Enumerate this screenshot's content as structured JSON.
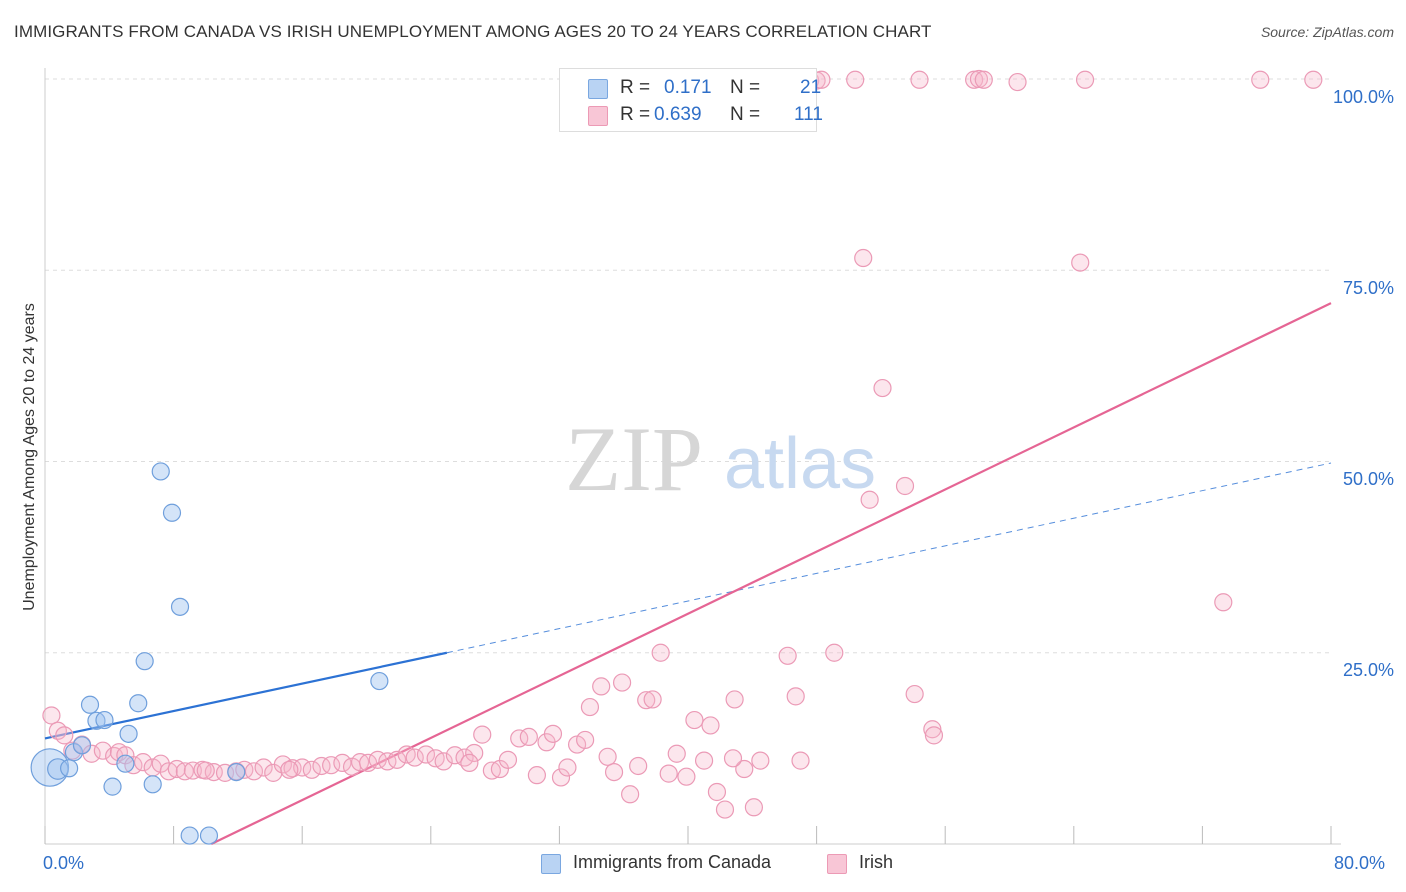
{
  "header": {
    "title": "IMMIGRANTS FROM CANADA VS IRISH UNEMPLOYMENT AMONG AGES 20 TO 24 YEARS CORRELATION CHART",
    "source": "Source: ZipAtlas.com"
  },
  "watermark": {
    "zip": "ZIP",
    "atlas": "atlas"
  },
  "legend": {
    "r_label": "R =",
    "n_label": "N =",
    "series": [
      {
        "name": "Immigrants from Canada",
        "r": "0.171",
        "n": "21",
        "fill": "#b9d3f3",
        "stroke": "#7aa7e0"
      },
      {
        "name": "Irish",
        "r": "0.639",
        "n": "111",
        "fill": "#f8c6d6",
        "stroke": "#ec9ab5"
      }
    ]
  },
  "colors": {
    "blue_point_fill": "rgba(160,196,240,0.45)",
    "blue_point_stroke": "#6f9fdc",
    "pink_point_fill": "rgba(246,182,204,0.35)",
    "pink_point_stroke": "#eb9ab6",
    "blue_line": "#2c72d4",
    "pink_line": "#e56594",
    "grid": "#dddddd",
    "tick_label": "#2f6fc8"
  },
  "chart_data": {
    "type": "scatter",
    "title": "IMMIGRANTS FROM CANADA VS IRISH UNEMPLOYMENT AMONG AGES 20 TO 24 YEARS CORRELATION CHART",
    "xlabel": "",
    "ylabel": "Unemployment Among Ages 20 to 24 years",
    "xlim": [
      0,
      80
    ],
    "ylim": [
      0,
      100
    ],
    "x_tick_labels": [
      "0.0%",
      "80.0%"
    ],
    "y_tick_values": [
      25,
      50,
      75,
      100
    ],
    "y_tick_labels": [
      "25.0%",
      "50.0%",
      "75.0%",
      "100.0%"
    ],
    "grid": true,
    "legend_position": "top-center",
    "series": [
      {
        "name": "Immigrants from Canada",
        "r": 0.171,
        "n": 21,
        "trend": {
          "x": [
            0,
            25
          ],
          "y": [
            13.8,
            25.0
          ],
          "dashed_extension_to_x": 80,
          "dashed_extension_y": 49.8
        },
        "points": [
          [
            0.3,
            10.0,
            2.2
          ],
          [
            0.8,
            9.8,
            1.2
          ],
          [
            1.5,
            9.9,
            1.0
          ],
          [
            1.8,
            12.0,
            1.0
          ],
          [
            2.3,
            12.9,
            1.0
          ],
          [
            2.8,
            18.2,
            1.0
          ],
          [
            3.2,
            16.1,
            1.0
          ],
          [
            3.7,
            16.2,
            1.0
          ],
          [
            4.2,
            7.5,
            1.0
          ],
          [
            5.0,
            10.5,
            1.0
          ],
          [
            5.2,
            14.4,
            1.0
          ],
          [
            5.8,
            18.4,
            1.0
          ],
          [
            6.2,
            23.9,
            1.0
          ],
          [
            6.7,
            7.8,
            1.0
          ],
          [
            7.2,
            48.7,
            1.0
          ],
          [
            7.9,
            43.3,
            1.0
          ],
          [
            8.4,
            31.0,
            1.0
          ],
          [
            9.0,
            1.1,
            1.0
          ],
          [
            10.2,
            1.1,
            1.0
          ],
          [
            11.9,
            9.4,
            1.0
          ],
          [
            20.8,
            21.3,
            1.0
          ]
        ]
      },
      {
        "name": "Irish",
        "r": 0.639,
        "n": 111,
        "trend": {
          "x": [
            0,
            80
          ],
          "y": [
            -10.5,
            70.7
          ]
        },
        "points": [
          [
            0.4,
            16.8
          ],
          [
            0.8,
            14.8
          ],
          [
            1.2,
            14.2
          ],
          [
            1.7,
            12.2
          ],
          [
            2.3,
            13.0
          ],
          [
            2.9,
            11.8
          ],
          [
            3.6,
            12.2
          ],
          [
            4.3,
            11.5
          ],
          [
            4.6,
            12.0
          ],
          [
            5.0,
            11.6
          ],
          [
            5.5,
            10.3
          ],
          [
            6.1,
            10.7
          ],
          [
            6.7,
            10.0
          ],
          [
            7.2,
            10.5
          ],
          [
            7.7,
            9.5
          ],
          [
            8.2,
            9.8
          ],
          [
            8.7,
            9.5
          ],
          [
            9.2,
            9.6
          ],
          [
            9.8,
            9.7
          ],
          [
            10.5,
            9.4
          ],
          [
            11.2,
            9.3
          ],
          [
            11.9,
            9.5
          ],
          [
            12.4,
            9.7
          ],
          [
            13.0,
            9.5
          ],
          [
            13.6,
            10.0
          ],
          [
            14.2,
            9.3
          ],
          [
            14.8,
            10.4
          ],
          [
            15.4,
            9.9
          ],
          [
            16.0,
            10.0
          ],
          [
            16.6,
            9.7
          ],
          [
            17.2,
            10.2
          ],
          [
            17.8,
            10.3
          ],
          [
            18.5,
            10.6
          ],
          [
            19.1,
            10.1
          ],
          [
            19.6,
            10.7
          ],
          [
            20.1,
            10.6
          ],
          [
            20.7,
            11.0
          ],
          [
            21.3,
            10.8
          ],
          [
            21.9,
            11.0
          ],
          [
            22.5,
            11.7
          ],
          [
            23.0,
            11.3
          ],
          [
            23.7,
            11.7
          ],
          [
            24.3,
            11.2
          ],
          [
            24.8,
            10.8
          ],
          [
            25.5,
            11.6
          ],
          [
            26.1,
            11.3
          ],
          [
            26.7,
            11.9
          ],
          [
            27.2,
            14.3
          ],
          [
            27.8,
            9.6
          ],
          [
            28.3,
            9.8
          ],
          [
            28.8,
            11.0
          ],
          [
            29.5,
            13.8
          ],
          [
            30.1,
            14.0
          ],
          [
            30.6,
            9.0
          ],
          [
            31.2,
            13.3
          ],
          [
            31.6,
            14.4
          ],
          [
            32.1,
            8.7
          ],
          [
            32.5,
            10.0
          ],
          [
            33.1,
            13.0
          ],
          [
            33.6,
            13.6
          ],
          [
            33.9,
            17.9
          ],
          [
            34.6,
            20.6
          ],
          [
            35.0,
            11.4
          ],
          [
            35.4,
            9.4
          ],
          [
            35.9,
            21.1
          ],
          [
            36.4,
            6.5
          ],
          [
            36.9,
            10.2
          ],
          [
            37.4,
            18.8
          ],
          [
            37.8,
            18.9
          ],
          [
            38.3,
            25.0
          ],
          [
            38.8,
            9.2
          ],
          [
            39.3,
            11.8
          ],
          [
            39.9,
            8.8
          ],
          [
            40.4,
            16.2
          ],
          [
            41.0,
            10.9
          ],
          [
            41.4,
            15.5
          ],
          [
            41.8,
            6.8
          ],
          [
            42.3,
            4.5
          ],
          [
            42.9,
            18.9
          ],
          [
            43.5,
            9.8
          ],
          [
            44.1,
            4.8
          ],
          [
            44.5,
            10.9
          ],
          [
            46.2,
            24.6
          ],
          [
            46.7,
            19.3
          ],
          [
            47.0,
            10.9
          ],
          [
            49.1,
            25.0
          ],
          [
            50.9,
            76.6
          ],
          [
            52.1,
            59.6
          ],
          [
            51.3,
            45.0
          ],
          [
            53.5,
            46.8
          ],
          [
            54.1,
            19.6
          ],
          [
            55.2,
            15.0
          ],
          [
            55.3,
            14.2
          ],
          [
            64.4,
            76.0
          ],
          [
            73.3,
            31.6
          ],
          [
            47.6,
            99.8
          ],
          [
            48.0,
            99.8
          ],
          [
            48.3,
            99.9
          ],
          [
            50.4,
            99.9
          ],
          [
            54.4,
            99.9
          ],
          [
            57.8,
            99.9
          ],
          [
            58.1,
            100.0
          ],
          [
            58.4,
            99.9
          ],
          [
            64.7,
            99.9
          ],
          [
            75.6,
            99.9
          ],
          [
            78.9,
            99.9
          ],
          [
            60.5,
            99.6
          ],
          [
            10.0,
            9.6
          ],
          [
            15.2,
            9.7
          ],
          [
            26.4,
            10.6
          ],
          [
            42.8,
            11.2
          ]
        ]
      }
    ]
  },
  "axis": {
    "x_min_label": "0.0%",
    "x_max_label": "80.0%",
    "y_label": "Unemployment Among Ages 20 to 24 years"
  }
}
